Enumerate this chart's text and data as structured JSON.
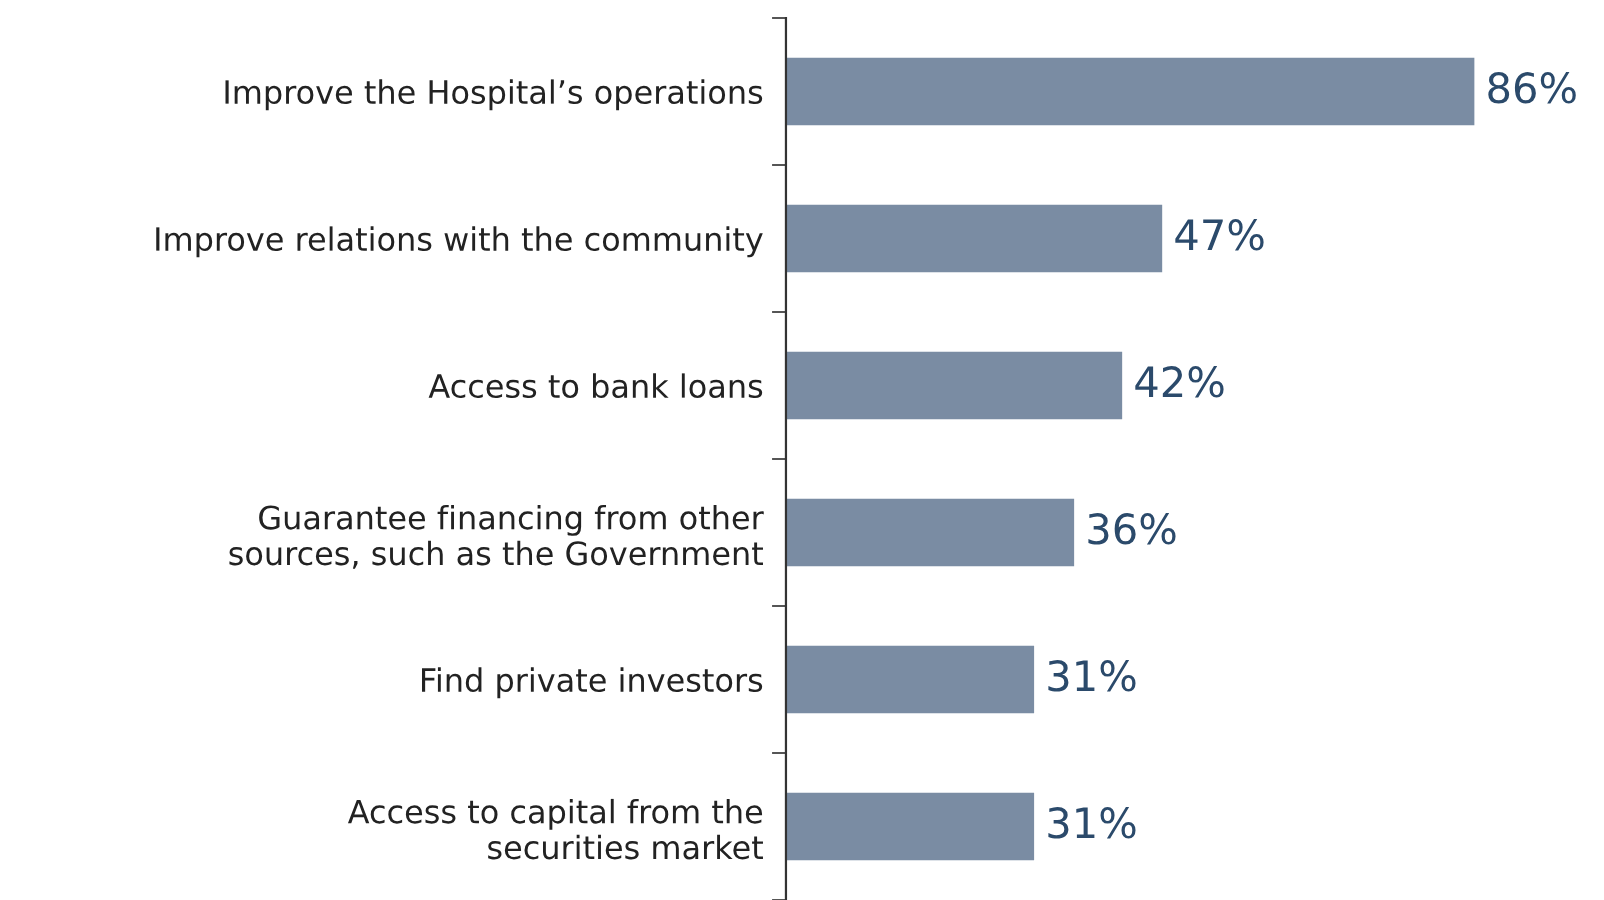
{
  "chart_data": {
    "type": "bar",
    "orientation": "horizontal",
    "categories": [
      "Improve the Hospital’s operations",
      "Improve relations with the community",
      "Access to bank loans",
      "Guarantee financing from other\nsources, such as the Government",
      "Find private investors",
      "Access to capital from the\nsecurities market"
    ],
    "values": [
      86,
      47,
      42,
      36,
      31,
      31
    ],
    "value_labels": [
      "86%",
      "47%",
      "42%",
      "36%",
      "31%",
      "31%"
    ],
    "color": "#7a8ca3",
    "grid": false,
    "legend": false
  }
}
